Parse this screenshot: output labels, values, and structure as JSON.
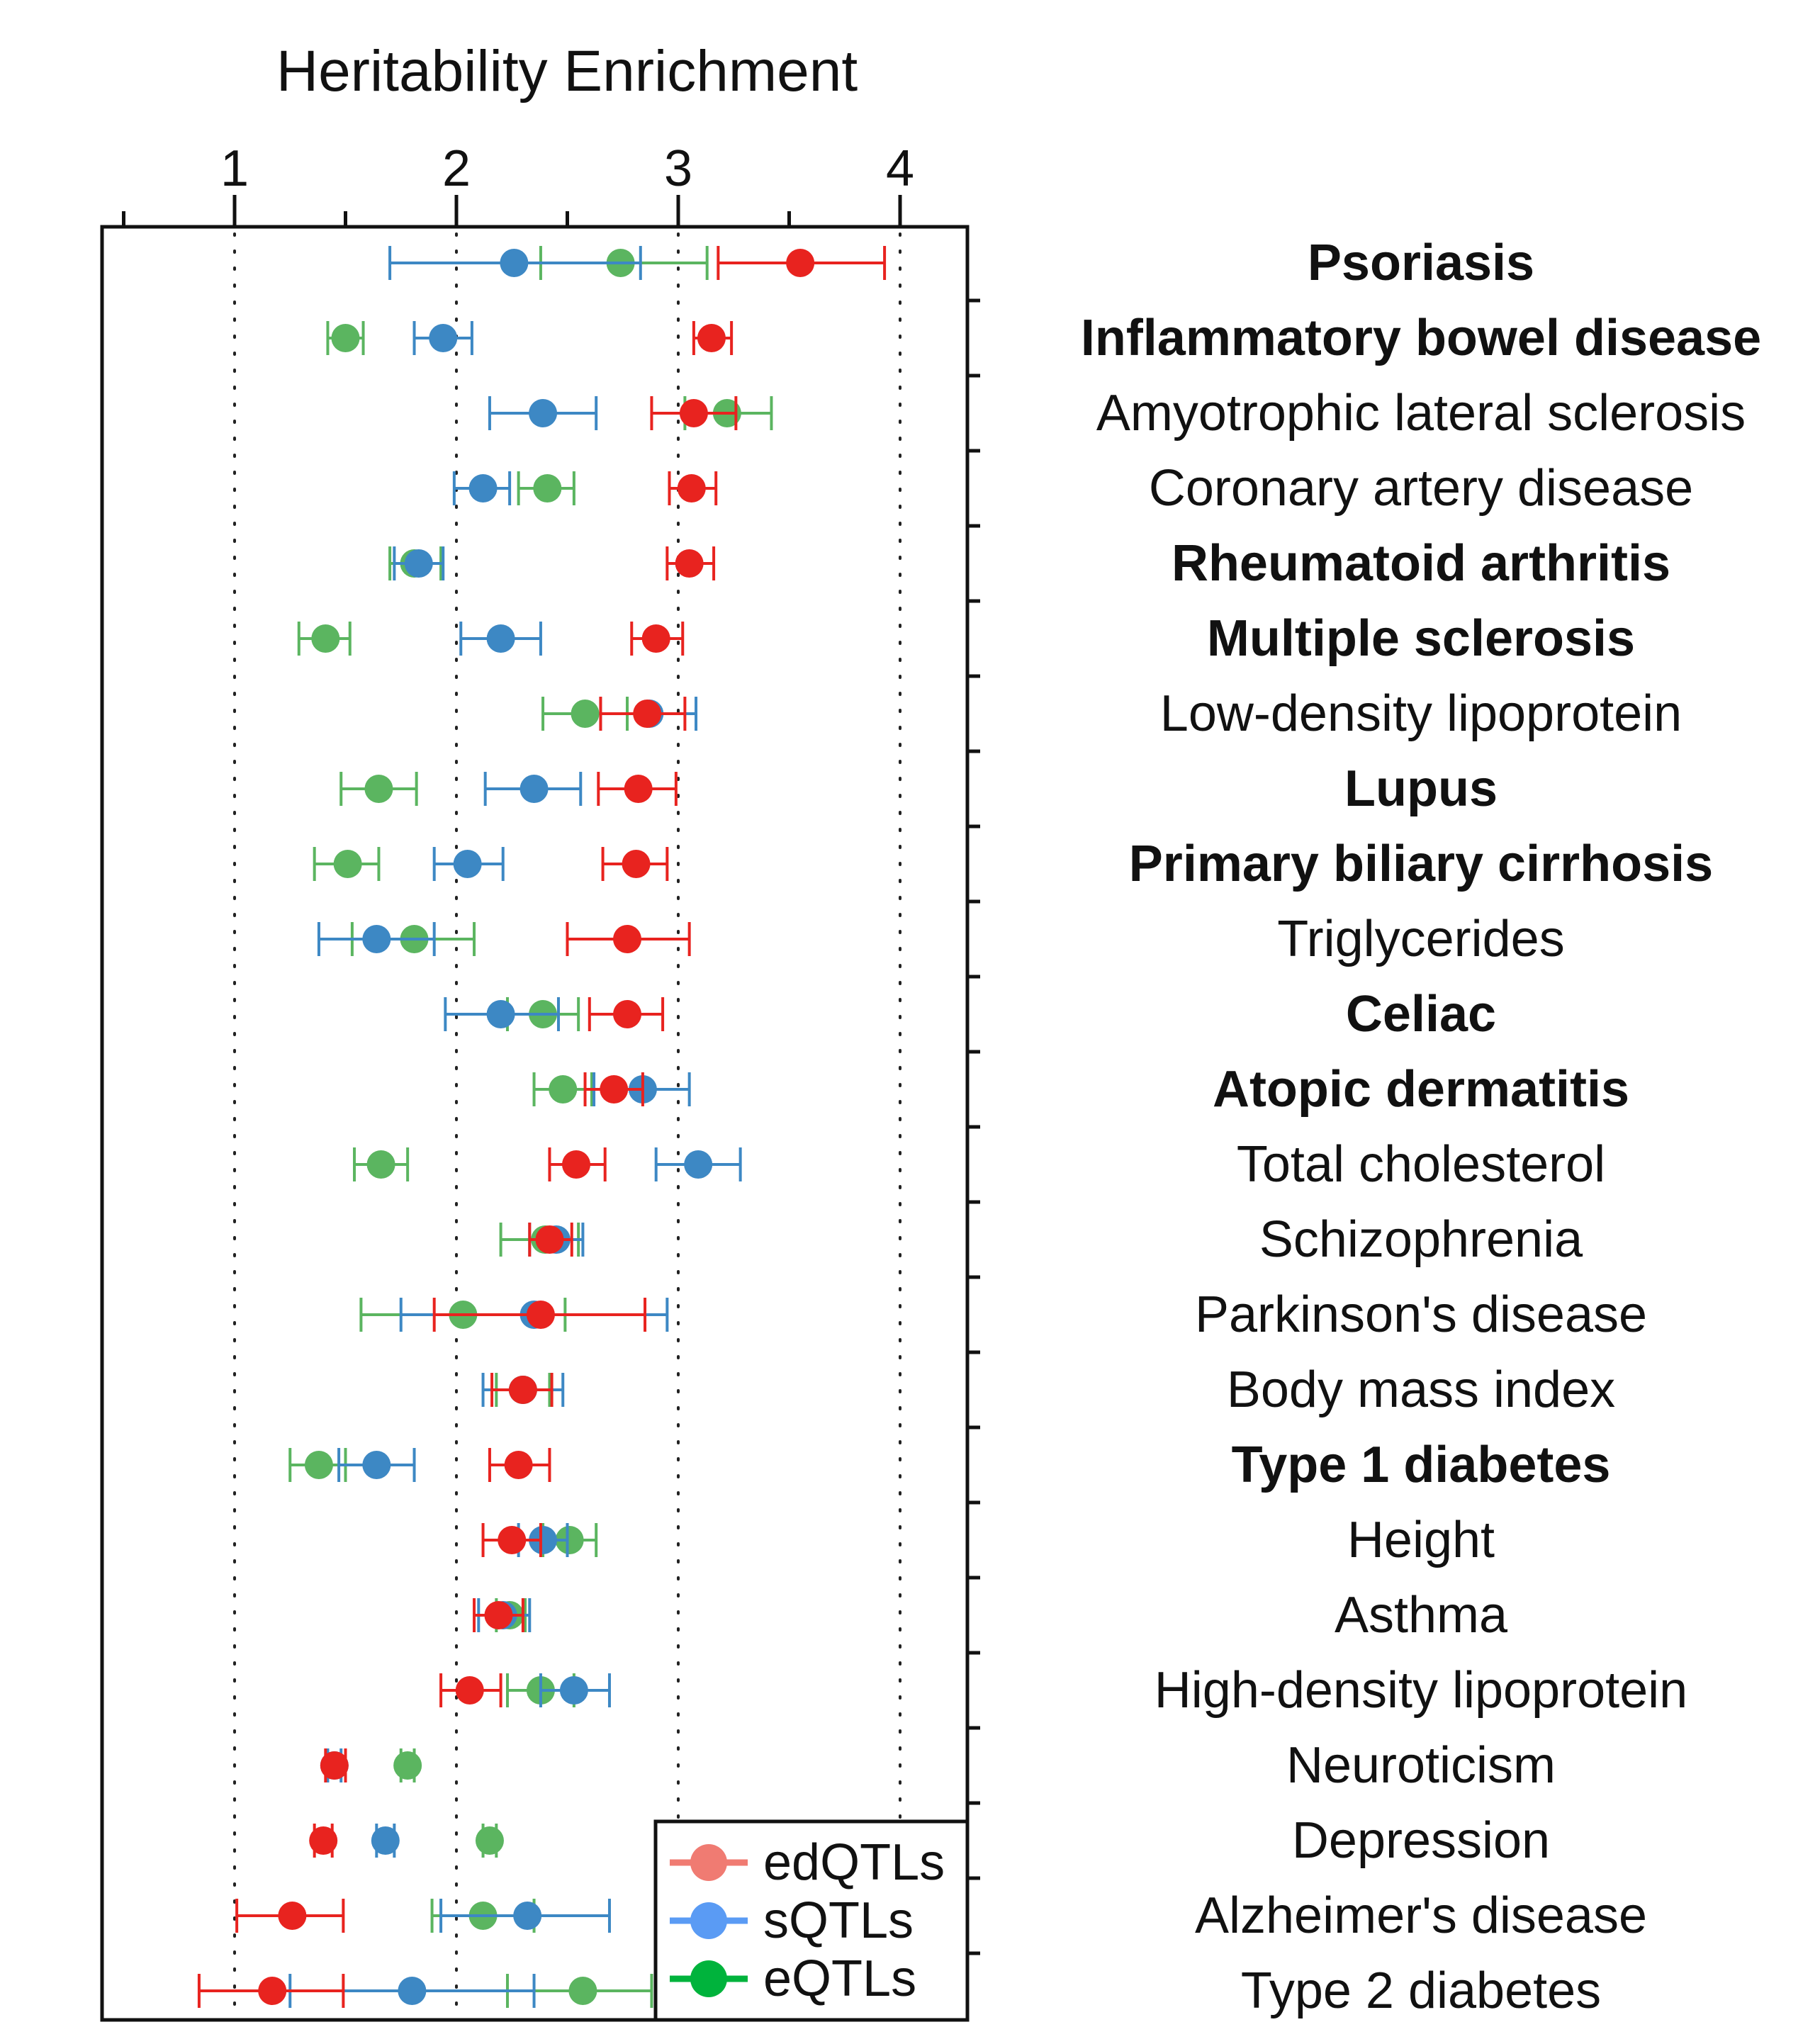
{
  "chart_data": {
    "type": "scatter",
    "title": "Heritability Enrichment",
    "xlabel": "",
    "ylabel": "",
    "xlim": [
      0.5,
      4.35
    ],
    "xticks": [
      1,
      2,
      3,
      4
    ],
    "xtick_labels": [
      "1",
      "2",
      "3",
      "4"
    ],
    "grid": "dotted vertical lines at ticks",
    "legend": {
      "position": "bottom-right",
      "entries": [
        "edQTLs",
        "sQTLs",
        "eQTLs"
      ]
    },
    "categories": [
      "Psoriasis",
      "Inflammatory bowel disease",
      "Amyotrophic lateral sclerosis",
      "Coronary artery disease",
      "Rheumatoid arthritis",
      "Multiple sclerosis",
      "Low-density lipoprotein",
      "Lupus",
      "Primary biliary cirrhosis",
      "Triglycerides",
      "Celiac",
      "Atopic dermatitis",
      "Total cholesterol",
      "Schizophrenia",
      "Parkinson's disease",
      "Body mass index",
      "Type 1 diabetes",
      "Height",
      "Asthma",
      "High-density lipoprotein",
      "Neuroticism",
      "Depression",
      "Alzheimer's disease",
      "Type 2 diabetes"
    ],
    "bold_categories": [
      "Psoriasis",
      "Inflammatory bowel disease",
      "Rheumatoid arthritis",
      "Multiple sclerosis",
      "Lupus",
      "Primary biliary cirrhosis",
      "Celiac",
      "Atopic dermatitis",
      "Type 1 diabetes"
    ],
    "series": [
      {
        "name": "edQTLs",
        "color": "#e8231f",
        "legend_color": "#f07b72",
        "values": [
          3.55,
          3.15,
          3.07,
          3.06,
          3.05,
          2.9,
          2.86,
          2.82,
          2.81,
          2.77,
          2.77,
          2.71,
          2.54,
          2.42,
          2.38,
          2.3,
          2.28,
          2.25,
          2.19,
          2.06,
          1.45,
          1.4,
          1.26,
          1.17
        ],
        "lower": [
          3.18,
          3.07,
          2.88,
          2.96,
          2.95,
          2.79,
          2.65,
          2.64,
          2.66,
          2.5,
          2.6,
          2.58,
          2.42,
          2.33,
          1.9,
          2.16,
          2.15,
          2.12,
          2.08,
          1.93,
          1.41,
          1.36,
          1.01,
          0.84
        ],
        "upper": [
          3.93,
          3.24,
          3.26,
          3.17,
          3.16,
          3.02,
          3.03,
          2.99,
          2.95,
          3.05,
          2.93,
          2.84,
          2.67,
          2.52,
          2.85,
          2.43,
          2.42,
          2.38,
          2.3,
          2.2,
          1.5,
          1.44,
          1.49,
          1.49
        ]
      },
      {
        "name": "sQTLs",
        "color": "#3d88c4",
        "legend_color": "#5a9bf4",
        "values": [
          2.26,
          1.94,
          2.39,
          2.12,
          1.83,
          2.2,
          2.87,
          2.35,
          2.05,
          1.64,
          2.2,
          2.84,
          3.09,
          2.45,
          2.35,
          2.3,
          1.64,
          2.39,
          2.21,
          2.53,
          1.45,
          1.68,
          2.32,
          1.8
        ],
        "lower": [
          1.7,
          1.81,
          2.15,
          1.99,
          1.72,
          2.02,
          2.65,
          2.13,
          1.9,
          1.38,
          1.95,
          2.62,
          2.9,
          2.33,
          1.75,
          2.12,
          1.47,
          2.28,
          2.1,
          2.38,
          1.42,
          1.64,
          1.93,
          1.25
        ],
        "upper": [
          2.83,
          2.07,
          2.63,
          2.24,
          1.94,
          2.38,
          3.08,
          2.56,
          2.21,
          1.9,
          2.46,
          3.05,
          3.28,
          2.57,
          2.95,
          2.48,
          1.81,
          2.5,
          2.33,
          2.69,
          1.48,
          1.72,
          2.69,
          2.35
        ]
      },
      {
        "name": "eQTLs",
        "color": "#5bb560",
        "legend_color": "#00b33c",
        "values": [
          2.74,
          1.5,
          3.22,
          2.41,
          1.81,
          1.41,
          2.58,
          1.65,
          1.51,
          1.81,
          2.39,
          2.48,
          1.66,
          2.4,
          2.03,
          2.3,
          1.38,
          2.51,
          2.24,
          2.38,
          1.78,
          2.15,
          2.12,
          2.57
        ],
        "lower": [
          2.38,
          1.42,
          3.03,
          2.28,
          1.7,
          1.29,
          2.39,
          1.48,
          1.36,
          1.53,
          2.23,
          2.35,
          1.54,
          2.2,
          1.57,
          2.18,
          1.25,
          2.39,
          2.18,
          2.23,
          1.75,
          2.12,
          1.89,
          2.23
        ],
        "upper": [
          3.13,
          1.58,
          3.42,
          2.53,
          1.93,
          1.52,
          2.77,
          1.82,
          1.65,
          2.08,
          2.55,
          2.61,
          1.78,
          2.55,
          2.49,
          2.42,
          1.5,
          2.63,
          2.31,
          2.53,
          1.81,
          2.18,
          2.35,
          2.88
        ]
      }
    ]
  }
}
